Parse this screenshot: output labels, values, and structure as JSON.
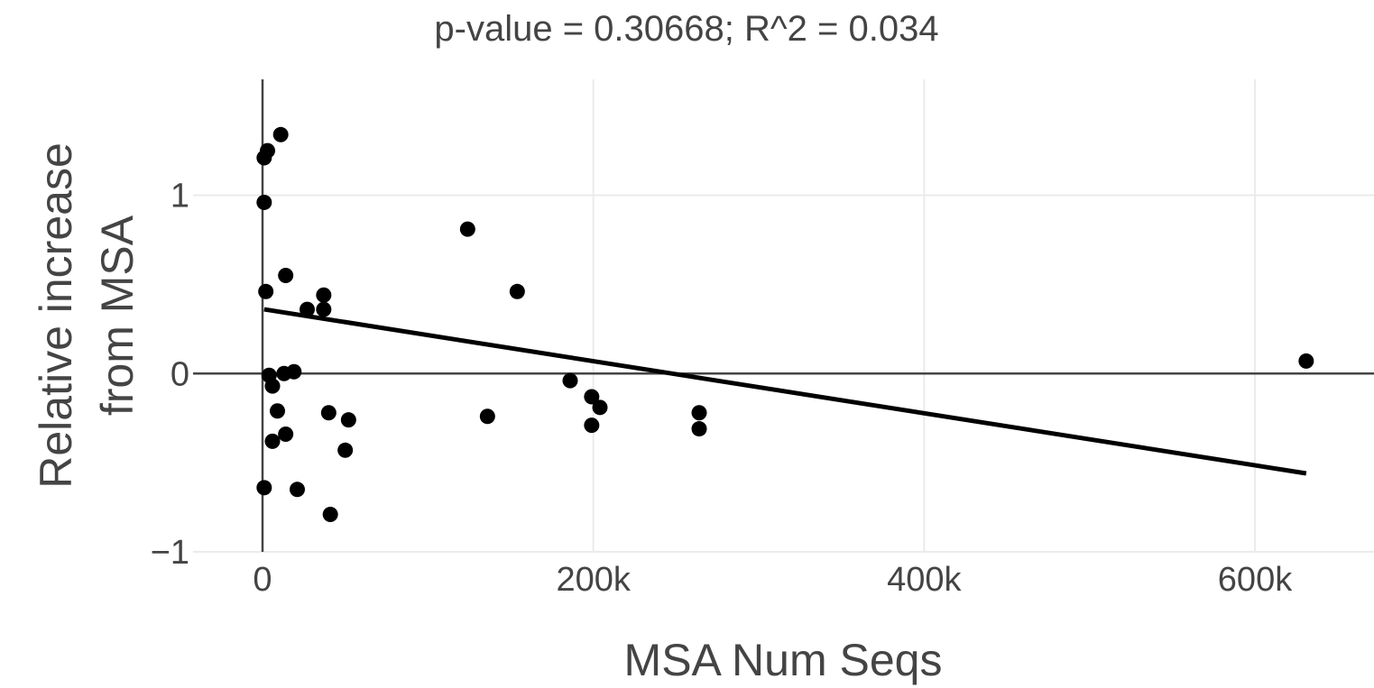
{
  "chart_data": {
    "type": "scatter",
    "title": "p-value = 0.30668; R^2 = 0.034",
    "xlabel": "MSA Num Seqs",
    "ylabel_lines": [
      "Relative increase",
      "from MSA"
    ],
    "xlim": [
      -42000,
      672000
    ],
    "ylim": [
      -1.0,
      1.65
    ],
    "x_ticks": [
      0,
      200000,
      400000,
      600000
    ],
    "x_tick_labels": [
      "0",
      "200k",
      "400k",
      "600k"
    ],
    "y_ticks": [
      -1,
      0,
      1
    ],
    "y_tick_labels": [
      "−1",
      "0",
      "1"
    ],
    "points": [
      {
        "x": 11000,
        "y": 1.34
      },
      {
        "x": 3000,
        "y": 1.25
      },
      {
        "x": 1000,
        "y": 1.21
      },
      {
        "x": 1000,
        "y": 0.96
      },
      {
        "x": 14000,
        "y": 0.55
      },
      {
        "x": 2000,
        "y": 0.46
      },
      {
        "x": 37000,
        "y": 0.44
      },
      {
        "x": 27000,
        "y": 0.36
      },
      {
        "x": 37000,
        "y": 0.36
      },
      {
        "x": 4000,
        "y": -0.01
      },
      {
        "x": 13000,
        "y": 0.0
      },
      {
        "x": 19000,
        "y": 0.01
      },
      {
        "x": 6000,
        "y": -0.07
      },
      {
        "x": 9000,
        "y": -0.21
      },
      {
        "x": 14000,
        "y": -0.34
      },
      {
        "x": 6000,
        "y": -0.38
      },
      {
        "x": 40000,
        "y": -0.22
      },
      {
        "x": 52000,
        "y": -0.26
      },
      {
        "x": 50000,
        "y": -0.43
      },
      {
        "x": 1000,
        "y": -0.64
      },
      {
        "x": 21000,
        "y": -0.65
      },
      {
        "x": 41000,
        "y": -0.79
      },
      {
        "x": 124000,
        "y": 0.81
      },
      {
        "x": 154000,
        "y": 0.46
      },
      {
        "x": 136000,
        "y": -0.24
      },
      {
        "x": 186000,
        "y": -0.04
      },
      {
        "x": 199000,
        "y": -0.13
      },
      {
        "x": 204000,
        "y": -0.19
      },
      {
        "x": 199000,
        "y": -0.29
      },
      {
        "x": 264000,
        "y": -0.22
      },
      {
        "x": 264000,
        "y": -0.31
      },
      {
        "x": 631000,
        "y": 0.07
      }
    ],
    "fit_line": {
      "x": [
        1000,
        631000
      ],
      "y": [
        0.36,
        -0.56
      ]
    },
    "grid": true
  }
}
